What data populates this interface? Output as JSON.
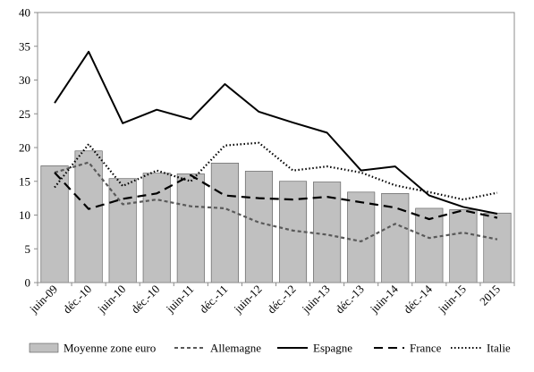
{
  "chart_data": {
    "type": "bar+line",
    "title": "",
    "xlabel": "",
    "ylabel": "",
    "ylim": [
      0,
      40
    ],
    "yticks": [
      0,
      5,
      10,
      15,
      20,
      25,
      30,
      35,
      40
    ],
    "grid": false,
    "legend_position": "bottom",
    "categories": [
      "juin-09",
      "déc.-10",
      "juin-10",
      "déc.-10",
      "juin-11",
      "déc.-11",
      "juin-12",
      "déc.-12",
      "juin-13",
      "déc.-13",
      "juin-14",
      "déc.-14",
      "juin-15",
      "2015"
    ],
    "series": [
      {
        "name": "Moyenne zone euro",
        "kind": "bar",
        "color": "#c0c0c0",
        "values": [
          17.3,
          19.5,
          15.4,
          16.2,
          16.1,
          17.7,
          16.5,
          15.0,
          14.9,
          13.4,
          13.2,
          11.0,
          10.8,
          10.3
        ]
      },
      {
        "name": "Allemagne",
        "kind": "line",
        "style": "short-dash",
        "color": "#595959",
        "values": [
          16.3,
          17.8,
          11.6,
          12.3,
          11.3,
          11.0,
          8.9,
          7.7,
          7.1,
          6.1,
          8.7,
          6.6,
          7.4,
          6.4
        ]
      },
      {
        "name": "Espagne",
        "kind": "line",
        "style": "solid",
        "color": "#000000",
        "values": [
          26.6,
          34.2,
          23.6,
          25.6,
          24.2,
          29.4,
          25.3,
          23.7,
          22.2,
          16.6,
          17.2,
          12.9,
          11.2,
          10.2
        ]
      },
      {
        "name": "France",
        "kind": "line",
        "style": "long-dash",
        "color": "#000000",
        "values": [
          16.3,
          10.9,
          12.4,
          13.2,
          15.9,
          12.9,
          12.5,
          12.3,
          12.7,
          11.9,
          11.1,
          9.4,
          10.7,
          9.6
        ]
      },
      {
        "name": "Italie",
        "kind": "line",
        "style": "dotted",
        "color": "#000000",
        "values": [
          14.1,
          20.5,
          14.3,
          16.6,
          15.0,
          20.3,
          20.7,
          16.6,
          17.2,
          16.3,
          14.4,
          13.4,
          12.3,
          13.3
        ]
      }
    ]
  }
}
